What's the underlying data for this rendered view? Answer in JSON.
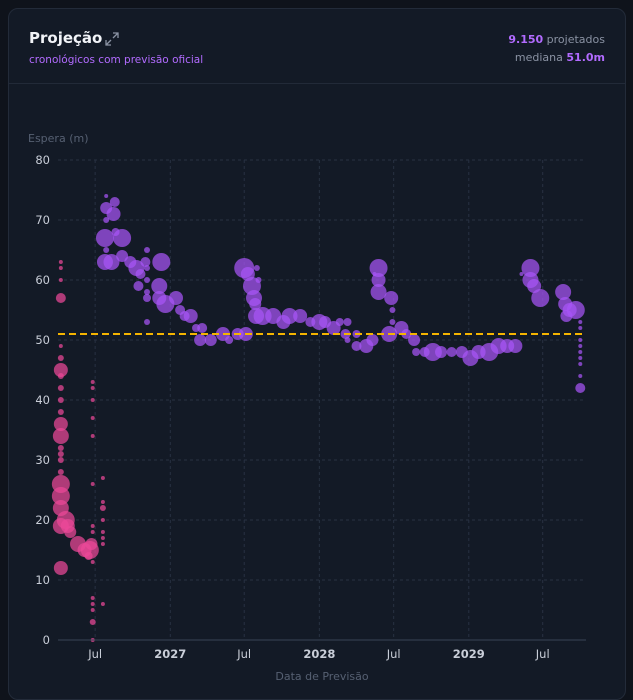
{
  "header": {
    "title": "Projeção",
    "subtitle": "cronológicos com previsão oficial",
    "count_value": "9.150",
    "count_label": "projetados",
    "median_label": "mediana",
    "median_value": "51.0m"
  },
  "icons": {
    "expand": "expand-icon"
  },
  "colors": {
    "purple": "#a855f7",
    "pink": "#ec4899",
    "median": "#f5b400",
    "accent": "#b26bff"
  },
  "chart_data": {
    "type": "scatter",
    "ylabel": "Espera (m)",
    "xlabel": "Data de Previsão",
    "ylim": [
      0,
      80
    ],
    "yticks": [
      0,
      10,
      20,
      30,
      40,
      50,
      60,
      70,
      80
    ],
    "xlim": [
      "2026-04-01",
      "2029-10-15"
    ],
    "xticks": [
      {
        "date": "2026-07-01",
        "label": "Jul",
        "bold": false
      },
      {
        "date": "2027-01-01",
        "label": "2027",
        "bold": true
      },
      {
        "date": "2027-07-01",
        "label": "Jul",
        "bold": false
      },
      {
        "date": "2028-01-01",
        "label": "2028",
        "bold": true
      },
      {
        "date": "2028-07-01",
        "label": "Jul",
        "bold": false
      },
      {
        "date": "2029-01-01",
        "label": "2029",
        "bold": true
      },
      {
        "date": "2029-07-01",
        "label": "Jul",
        "bold": false
      }
    ],
    "median": 51.0,
    "grid": true,
    "series": [
      {
        "color": "#ec4899",
        "points": [
          {
            "x": "2026-04-08",
            "y": 12,
            "r": 7
          },
          {
            "x": "2026-04-08",
            "y": 19,
            "r": 8
          },
          {
            "x": "2026-04-08",
            "y": 22,
            "r": 8
          },
          {
            "x": "2026-04-08",
            "y": 24,
            "r": 9
          },
          {
            "x": "2026-04-08",
            "y": 26,
            "r": 9
          },
          {
            "x": "2026-04-08",
            "y": 34,
            "r": 8
          },
          {
            "x": "2026-04-08",
            "y": 36,
            "r": 7
          },
          {
            "x": "2026-04-08",
            "y": 45,
            "r": 7
          },
          {
            "x": "2026-04-08",
            "y": 57,
            "r": 5
          },
          {
            "x": "2026-04-08",
            "y": 28,
            "r": 3
          },
          {
            "x": "2026-04-08",
            "y": 30,
            "r": 3
          },
          {
            "x": "2026-04-08",
            "y": 31,
            "r": 3
          },
          {
            "x": "2026-04-08",
            "y": 32,
            "r": 3
          },
          {
            "x": "2026-04-08",
            "y": 38,
            "r": 3
          },
          {
            "x": "2026-04-08",
            "y": 40,
            "r": 3
          },
          {
            "x": "2026-04-08",
            "y": 42,
            "r": 3
          },
          {
            "x": "2026-04-08",
            "y": 44,
            "r": 3
          },
          {
            "x": "2026-04-08",
            "y": 47,
            "r": 3
          },
          {
            "x": "2026-04-08",
            "y": 49,
            "r": 2
          },
          {
            "x": "2026-04-08",
            "y": 60,
            "r": 2
          },
          {
            "x": "2026-04-08",
            "y": 62,
            "r": 2
          },
          {
            "x": "2026-04-08",
            "y": 63,
            "r": 2
          },
          {
            "x": "2026-04-20",
            "y": 20,
            "r": 9
          },
          {
            "x": "2026-04-25",
            "y": 19,
            "r": 7
          },
          {
            "x": "2026-05-01",
            "y": 18,
            "r": 6
          },
          {
            "x": "2026-05-20",
            "y": 16,
            "r": 8
          },
          {
            "x": "2026-06-05",
            "y": 15,
            "r": 7
          },
          {
            "x": "2026-06-18",
            "y": 15,
            "r": 9
          },
          {
            "x": "2026-06-22",
            "y": 16,
            "r": 6
          },
          {
            "x": "2026-06-15",
            "y": 14,
            "r": 4
          },
          {
            "x": "2026-06-25",
            "y": 0,
            "r": 2
          },
          {
            "x": "2026-06-25",
            "y": 3,
            "r": 3
          },
          {
            "x": "2026-06-25",
            "y": 5,
            "r": 2
          },
          {
            "x": "2026-06-25",
            "y": 6,
            "r": 2
          },
          {
            "x": "2026-06-25",
            "y": 7,
            "r": 2
          },
          {
            "x": "2026-06-25",
            "y": 13,
            "r": 2
          },
          {
            "x": "2026-06-25",
            "y": 18,
            "r": 2
          },
          {
            "x": "2026-06-25",
            "y": 19,
            "r": 2
          },
          {
            "x": "2026-06-25",
            "y": 26,
            "r": 2
          },
          {
            "x": "2026-06-25",
            "y": 34,
            "r": 2
          },
          {
            "x": "2026-06-25",
            "y": 37,
            "r": 2
          },
          {
            "x": "2026-06-25",
            "y": 40,
            "r": 2
          },
          {
            "x": "2026-06-25",
            "y": 42,
            "r": 2
          },
          {
            "x": "2026-06-25",
            "y": 43,
            "r": 2
          },
          {
            "x": "2026-07-20",
            "y": 6,
            "r": 2
          },
          {
            "x": "2026-07-20",
            "y": 16,
            "r": 2
          },
          {
            "x": "2026-07-20",
            "y": 17,
            "r": 2
          },
          {
            "x": "2026-07-20",
            "y": 18,
            "r": 2
          },
          {
            "x": "2026-07-20",
            "y": 20,
            "r": 2
          },
          {
            "x": "2026-07-20",
            "y": 22,
            "r": 3
          },
          {
            "x": "2026-07-20",
            "y": 23,
            "r": 2
          },
          {
            "x": "2026-07-20",
            "y": 27,
            "r": 2
          }
        ]
      },
      {
        "color": "#a855f7",
        "points": [
          {
            "x": "2026-07-25",
            "y": 63,
            "r": 8
          },
          {
            "x": "2026-07-25",
            "y": 67,
            "r": 9
          },
          {
            "x": "2026-07-28",
            "y": 72,
            "r": 6
          },
          {
            "x": "2026-07-28",
            "y": 74,
            "r": 2
          },
          {
            "x": "2026-07-28",
            "y": 70,
            "r": 3
          },
          {
            "x": "2026-07-28",
            "y": 65,
            "r": 3
          },
          {
            "x": "2026-08-10",
            "y": 63,
            "r": 8
          },
          {
            "x": "2026-08-15",
            "y": 71,
            "r": 7
          },
          {
            "x": "2026-08-18",
            "y": 73,
            "r": 5
          },
          {
            "x": "2026-08-20",
            "y": 68,
            "r": 4
          },
          {
            "x": "2026-09-05",
            "y": 67,
            "r": 9
          },
          {
            "x": "2026-09-05",
            "y": 64,
            "r": 6
          },
          {
            "x": "2026-09-25",
            "y": 63,
            "r": 6
          },
          {
            "x": "2026-10-10",
            "y": 62,
            "r": 8
          },
          {
            "x": "2026-10-15",
            "y": 59,
            "r": 5
          },
          {
            "x": "2026-10-20",
            "y": 61,
            "r": 5
          },
          {
            "x": "2026-11-01",
            "y": 63,
            "r": 5
          },
          {
            "x": "2026-11-05",
            "y": 57,
            "r": 4
          },
          {
            "x": "2026-11-05",
            "y": 58,
            "r": 3
          },
          {
            "x": "2026-11-05",
            "y": 53,
            "r": 3
          },
          {
            "x": "2026-11-05",
            "y": 60,
            "r": 3
          },
          {
            "x": "2026-11-05",
            "y": 62,
            "r": 3
          },
          {
            "x": "2026-11-05",
            "y": 65,
            "r": 3
          },
          {
            "x": "2026-12-10",
            "y": 63,
            "r": 9
          },
          {
            "x": "2026-12-05",
            "y": 59,
            "r": 8
          },
          {
            "x": "2026-12-05",
            "y": 57,
            "r": 7
          },
          {
            "x": "2026-12-20",
            "y": 56,
            "r": 9
          },
          {
            "x": "2027-01-15",
            "y": 57,
            "r": 7
          },
          {
            "x": "2027-01-25",
            "y": 55,
            "r": 5
          },
          {
            "x": "2027-02-05",
            "y": 54,
            "r": 5
          },
          {
            "x": "2027-02-20",
            "y": 54,
            "r": 7
          },
          {
            "x": "2027-03-05",
            "y": 52,
            "r": 4
          },
          {
            "x": "2027-03-15",
            "y": 50,
            "r": 6
          },
          {
            "x": "2027-03-20",
            "y": 52,
            "r": 5
          },
          {
            "x": "2027-04-10",
            "y": 50,
            "r": 6
          },
          {
            "x": "2027-05-10",
            "y": 51,
            "r": 7
          },
          {
            "x": "2027-05-25",
            "y": 50,
            "r": 4
          },
          {
            "x": "2027-06-15",
            "y": 51,
            "r": 6
          },
          {
            "x": "2027-07-05",
            "y": 51,
            "r": 7
          },
          {
            "x": "2027-07-01",
            "y": 62,
            "r": 10
          },
          {
            "x": "2027-07-10",
            "y": 61,
            "r": 7
          },
          {
            "x": "2027-07-20",
            "y": 59,
            "r": 9
          },
          {
            "x": "2027-07-25",
            "y": 57,
            "r": 8
          },
          {
            "x": "2027-07-28",
            "y": 56,
            "r": 6
          },
          {
            "x": "2027-07-30",
            "y": 54,
            "r": 8
          },
          {
            "x": "2027-08-01",
            "y": 62,
            "r": 3
          },
          {
            "x": "2027-08-05",
            "y": 60,
            "r": 3
          },
          {
            "x": "2027-08-15",
            "y": 54,
            "r": 9
          },
          {
            "x": "2027-09-10",
            "y": 54,
            "r": 8
          },
          {
            "x": "2027-10-05",
            "y": 53,
            "r": 7
          },
          {
            "x": "2027-10-20",
            "y": 54,
            "r": 8
          },
          {
            "x": "2027-11-15",
            "y": 54,
            "r": 7
          },
          {
            "x": "2027-12-10",
            "y": 53,
            "r": 5
          },
          {
            "x": "2028-01-01",
            "y": 53,
            "r": 8
          },
          {
            "x": "2028-01-15",
            "y": 53,
            "r": 6
          },
          {
            "x": "2028-02-05",
            "y": 52,
            "r": 7
          },
          {
            "x": "2028-02-20",
            "y": 53,
            "r": 4
          },
          {
            "x": "2028-03-05",
            "y": 51,
            "r": 5
          },
          {
            "x": "2028-03-10",
            "y": 53,
            "r": 4
          },
          {
            "x": "2028-03-10",
            "y": 50,
            "r": 3
          },
          {
            "x": "2028-04-01",
            "y": 49,
            "r": 5
          },
          {
            "x": "2028-04-01",
            "y": 51,
            "r": 4
          },
          {
            "x": "2028-04-25",
            "y": 49,
            "r": 7
          },
          {
            "x": "2028-05-10",
            "y": 50,
            "r": 6
          },
          {
            "x": "2028-05-25",
            "y": 62,
            "r": 9
          },
          {
            "x": "2028-05-25",
            "y": 60,
            "r": 7
          },
          {
            "x": "2028-05-25",
            "y": 58,
            "r": 8
          },
          {
            "x": "2028-05-15",
            "y": 61,
            "r": 2
          },
          {
            "x": "2028-06-25",
            "y": 57,
            "r": 7
          },
          {
            "x": "2028-06-28",
            "y": 55,
            "r": 3
          },
          {
            "x": "2028-06-28",
            "y": 53,
            "r": 3
          },
          {
            "x": "2028-06-20",
            "y": 51,
            "r": 8
          },
          {
            "x": "2028-07-20",
            "y": 52,
            "r": 7
          },
          {
            "x": "2028-08-01",
            "y": 51,
            "r": 5
          },
          {
            "x": "2028-08-20",
            "y": 50,
            "r": 6
          },
          {
            "x": "2028-08-25",
            "y": 48,
            "r": 4
          },
          {
            "x": "2028-09-15",
            "y": 48,
            "r": 5
          },
          {
            "x": "2028-10-05",
            "y": 48,
            "r": 9
          },
          {
            "x": "2028-10-25",
            "y": 48,
            "r": 6
          },
          {
            "x": "2028-11-20",
            "y": 48,
            "r": 5
          },
          {
            "x": "2028-12-15",
            "y": 48,
            "r": 6
          },
          {
            "x": "2029-01-05",
            "y": 47,
            "r": 8
          },
          {
            "x": "2029-01-25",
            "y": 48,
            "r": 7
          },
          {
            "x": "2029-02-20",
            "y": 48,
            "r": 9
          },
          {
            "x": "2029-03-15",
            "y": 49,
            "r": 8
          },
          {
            "x": "2029-04-05",
            "y": 49,
            "r": 7
          },
          {
            "x": "2029-04-25",
            "y": 49,
            "r": 7
          },
          {
            "x": "2029-05-10",
            "y": 61,
            "r": 2
          },
          {
            "x": "2029-06-01",
            "y": 62,
            "r": 9
          },
          {
            "x": "2029-06-01",
            "y": 60,
            "r": 8
          },
          {
            "x": "2029-06-10",
            "y": 59,
            "r": 7
          },
          {
            "x": "2029-06-25",
            "y": 57,
            "r": 9
          },
          {
            "x": "2029-08-20",
            "y": 58,
            "r": 8
          },
          {
            "x": "2029-08-25",
            "y": 56,
            "r": 7
          },
          {
            "x": "2029-08-28",
            "y": 54,
            "r": 6
          },
          {
            "x": "2029-09-05",
            "y": 55,
            "r": 7
          },
          {
            "x": "2029-09-20",
            "y": 55,
            "r": 9
          },
          {
            "x": "2029-10-01",
            "y": 53,
            "r": 2
          },
          {
            "x": "2029-10-01",
            "y": 52,
            "r": 2
          },
          {
            "x": "2029-10-01",
            "y": 50,
            "r": 2
          },
          {
            "x": "2029-10-01",
            "y": 49,
            "r": 2
          },
          {
            "x": "2029-10-01",
            "y": 48,
            "r": 2
          },
          {
            "x": "2029-10-01",
            "y": 47,
            "r": 2
          },
          {
            "x": "2029-10-01",
            "y": 46,
            "r": 2
          },
          {
            "x": "2029-10-01",
            "y": 44,
            "r": 2
          },
          {
            "x": "2029-10-01",
            "y": 42,
            "r": 5
          }
        ]
      }
    ]
  }
}
